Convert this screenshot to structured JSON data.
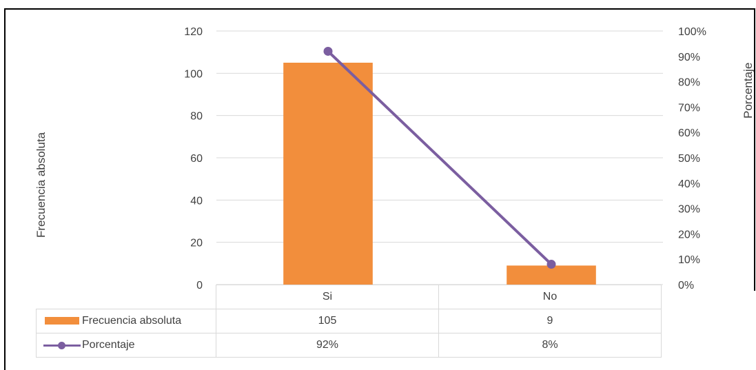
{
  "chart_data": {
    "type": "bar",
    "categories": [
      "Si",
      "No"
    ],
    "series": [
      {
        "name": "Frecuencia absoluta",
        "type": "bar",
        "axis": "left",
        "values": [
          105,
          9
        ],
        "color": "#f28e3c",
        "labels": [
          "105",
          "9"
        ]
      },
      {
        "name": "Porcentaje",
        "type": "line",
        "axis": "right",
        "values": [
          0.92,
          0.08
        ],
        "color": "#7b5ea0",
        "labels": [
          "92%",
          "8%"
        ]
      }
    ],
    "ylabel": "Frecuencia absoluta",
    "ylabel_right": "Porcentaje",
    "ylim": [
      0,
      120
    ],
    "ylim_right": [
      0,
      1
    ],
    "yticks": [
      "0",
      "20",
      "40",
      "60",
      "80",
      "100",
      "120"
    ],
    "yticks_right": [
      "0%",
      "10%",
      "20%",
      "30%",
      "40%",
      "50%",
      "60%",
      "70%",
      "80%",
      "90%",
      "100%"
    ],
    "grid": true,
    "legend": "data table below chart",
    "grid_color": "#d9d9d9"
  }
}
